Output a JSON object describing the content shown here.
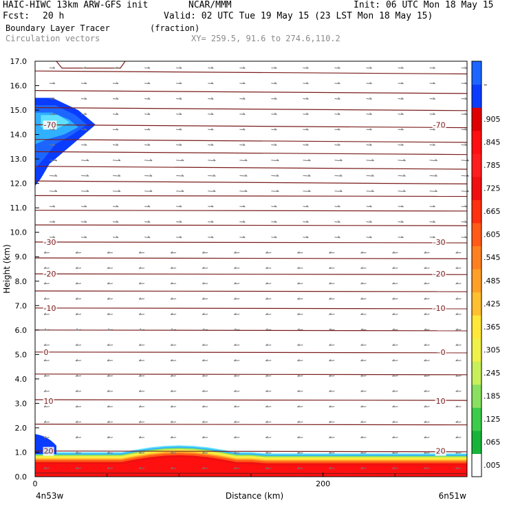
{
  "header": {
    "title": "HAIC-HIWC 13km ARW-GFS init",
    "org": "NCAR/MMM",
    "init": "Init: 06 UTC Mon 18 May 15",
    "fcst_label": "Fcst:",
    "fcst_value": "20 h",
    "valid": "Valid: 02 UTC Tue 19 May 15 (23 LST Mon 18 May 15)",
    "field": "Boundary Layer Tracer",
    "units": "(fraction)",
    "overlay": "Circulation vectors",
    "xy": "XY= 259.5, 91.6 to 274.6,110.2"
  },
  "chart_data": {
    "type": "heatmap",
    "title": "Boundary Layer Tracer",
    "xlabel": "Distance (km)",
    "ylabel": "Height (km)",
    "xlim": [
      0,
      300
    ],
    "ylim": [
      0,
      17
    ],
    "x_ticks": [
      {
        "value": 0,
        "label": "0"
      },
      {
        "value": 200,
        "label": "200"
      }
    ],
    "x_end_labels": {
      "left": "4n53w",
      "right": "6n51w"
    },
    "y_ticks": [
      "0.0",
      "1.0",
      "2.0",
      "3.0",
      "4.0",
      "5.0",
      "6.0",
      "7.0",
      "8.0",
      "9.0",
      "10.0",
      "11.0",
      "12.0",
      "13.0",
      "14.0",
      "15.0",
      "16.0",
      "17.0"
    ],
    "colorbar": {
      "labels": [
        ".005",
        ".065",
        ".125",
        ".185",
        ".245",
        ".305",
        ".365",
        ".425",
        ".485",
        ".545",
        ".605",
        ".665",
        ".725",
        ".785",
        ".845",
        ".905",
        "–"
      ],
      "colors": [
        "#ffffff",
        "#0a8c2a",
        "#18b43a",
        "#3ccc4a",
        "#8ae060",
        "#c8f05a",
        "#f0f04a",
        "#ffe83a",
        "#ffc030",
        "#ffa028",
        "#ff8020",
        "#ff5a18",
        "#ff3010",
        "#f01010",
        "#ff1e1e",
        "#ff1010",
        "#e00000",
        "#0a3cff",
        "#1c66ff",
        "#30b0ff",
        "#60e0ff"
      ]
    },
    "tracer_regions": [
      {
        "name": "boundary layer",
        "x": [
          0,
          300
        ],
        "z_top_km": [
          1.0,
          0.9
        ]
      },
      {
        "name": "upper plume",
        "x": [
          0,
          40
        ],
        "z_km": [
          12.0,
          15.5
        ]
      }
    ],
    "temperature_contours_c": [
      {
        "value": -70,
        "label": "-70",
        "z_km": 14.4
      },
      {
        "value": -30,
        "label": "-30",
        "z_km": 9.6
      },
      {
        "value": -20,
        "label": "-20",
        "z_km": 8.3
      },
      {
        "value": -10,
        "label": "-10",
        "z_km": 6.9
      },
      {
        "value": 0,
        "label": "0",
        "z_km": 5.1
      },
      {
        "value": 10,
        "label": "10",
        "z_km": 3.1
      },
      {
        "value": 20,
        "label": "20",
        "z_km": 1.05
      }
    ],
    "contour_levels_km": [
      0.15,
      1.05,
      2.15,
      3.15,
      4.2,
      5.1,
      6.0,
      6.9,
      7.6,
      8.3,
      8.95,
      9.6,
      10.3,
      10.9,
      11.5,
      12.1,
      12.7,
      13.3,
      13.8,
      14.4,
      15.1,
      15.8,
      16.6
    ]
  }
}
